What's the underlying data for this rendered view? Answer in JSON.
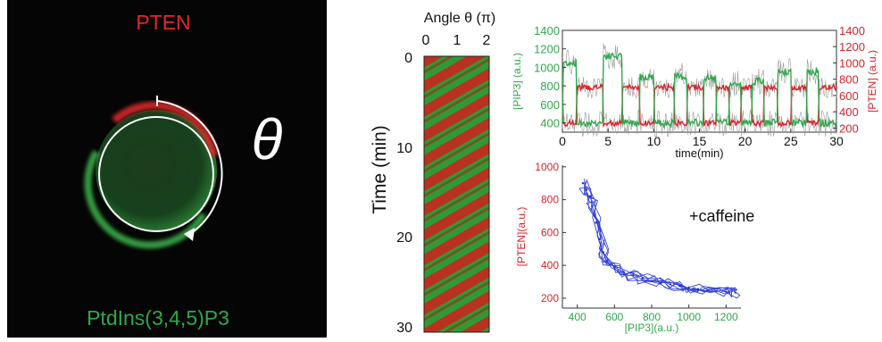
{
  "cell_image": {
    "label_top": "PTEN",
    "label_bottom": "PtdIns(3,4,5)P3",
    "angle_symbol": "θ",
    "colors": {
      "pten": "#e3262b",
      "pip3": "#2fa84a",
      "background": "#050505"
    }
  },
  "kymograph": {
    "x_title": "Angle θ (π)",
    "x_ticks": [
      "0",
      "1",
      "2"
    ],
    "y_title": "Time (min)",
    "y_ticks": [
      "0",
      "10",
      "20",
      "30"
    ]
  },
  "annotation": "+caffeine",
  "chart_data": [
    {
      "type": "line",
      "xlabel": "time(min)",
      "ylabel_left": "[PIP3] (a.u.)",
      "ylabel_right": "[PTEN] (a.u.)",
      "xlim": [
        0,
        30
      ],
      "ylim_left": [
        300,
        1400
      ],
      "ylim_right": [
        150,
        1400
      ],
      "x_ticks": [
        0,
        5,
        10,
        15,
        20,
        25,
        30
      ],
      "y_ticks_left": [
        400,
        600,
        800,
        1000,
        1200,
        1400
      ],
      "y_ticks_right": [
        200,
        400,
        600,
        800,
        1000,
        1200,
        1400
      ],
      "colors": {
        "pip3": "#2fa84a",
        "pten": "#d8232a",
        "raw": "#9a9a9a"
      },
      "pip3_peaks": [
        {
          "start": 0.1,
          "end": 1.5,
          "value": 1050
        },
        {
          "start": 4.5,
          "end": 6.5,
          "value": 1120
        },
        {
          "start": 8.5,
          "end": 10.0,
          "value": 900
        },
        {
          "start": 12.3,
          "end": 13.6,
          "value": 900
        },
        {
          "start": 15.5,
          "end": 16.8,
          "value": 880
        },
        {
          "start": 18.3,
          "end": 19.5,
          "value": 820
        },
        {
          "start": 20.8,
          "end": 22.0,
          "value": 850
        },
        {
          "start": 23.6,
          "end": 25.0,
          "value": 950
        },
        {
          "start": 26.8,
          "end": 28.0,
          "value": 960
        }
      ],
      "pip3_baseline": 400,
      "pten_high": 700,
      "pten_low": 260
    },
    {
      "type": "scatter",
      "xlabel": "[PIP3](a.u.)",
      "ylabel": "[PTEN](a.u.)",
      "xlim": [
        320,
        1280
      ],
      "ylim": [
        140,
        1010
      ],
      "x_ticks": [
        400,
        600,
        800,
        1000,
        1200
      ],
      "y_ticks": [
        200,
        400,
        600,
        800,
        1000
      ],
      "color": "#1f2fd0",
      "x": [
        430,
        450,
        470,
        480,
        500,
        520,
        540,
        560,
        600,
        650,
        700,
        750,
        800,
        850,
        900,
        950,
        1000,
        1050,
        1100,
        1150,
        1200,
        1250
      ],
      "y": [
        900,
        860,
        820,
        760,
        660,
        560,
        480,
        430,
        390,
        360,
        340,
        320,
        305,
        295,
        285,
        275,
        265,
        255,
        250,
        245,
        240,
        235
      ]
    }
  ]
}
